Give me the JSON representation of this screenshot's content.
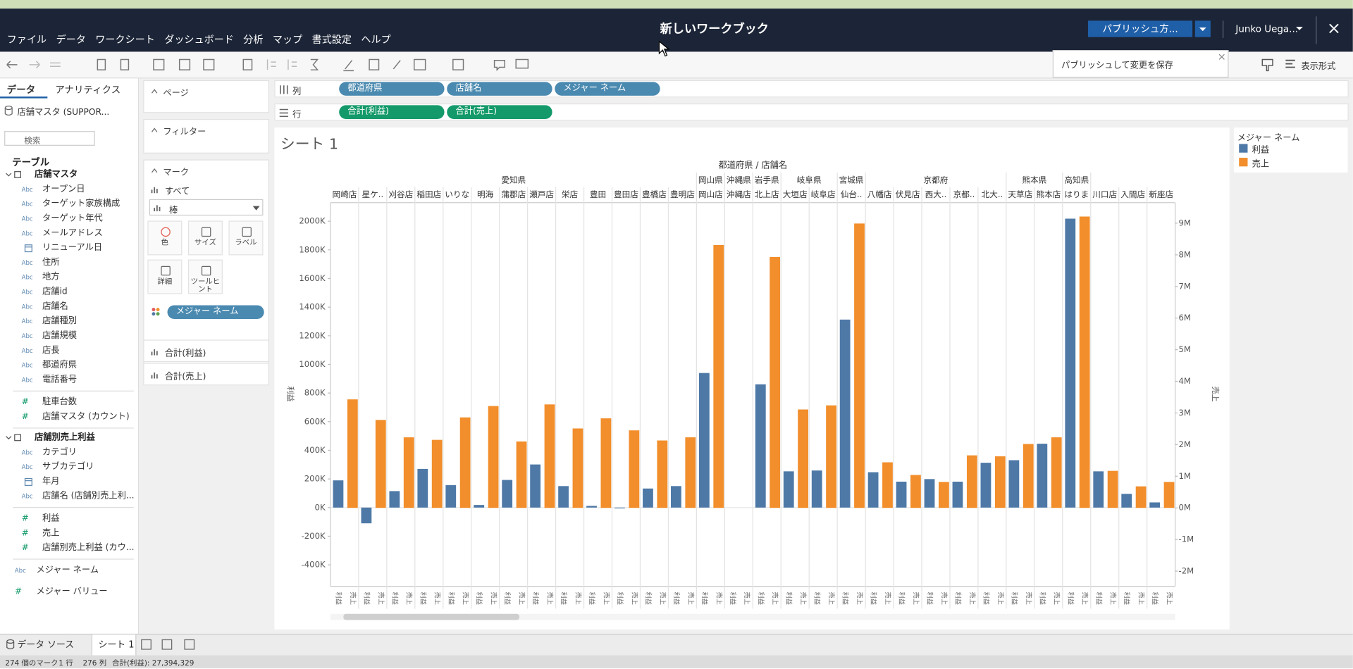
{
  "window": {
    "title": "新しいワークブック",
    "publish": "パブリッシュ方...",
    "user": "Junko Uega...",
    "tooltip": "パブリッシュして変更を保存",
    "show_me": "表示形式"
  },
  "menu": [
    "ファイル",
    "データ",
    "ワークシート",
    "ダッシュボード",
    "分析",
    "マップ",
    "書式設定",
    "ヘルプ"
  ],
  "data_pane": {
    "tabs": [
      "データ",
      "アナリティクス"
    ],
    "source": "店舗マスタ (SUPPOR...",
    "search": "検索",
    "tables_heading": "テーブル",
    "icons": {
      "string": "Abc",
      "number": "#"
    },
    "tables": [
      {
        "name": "店舗マスタ",
        "dimensions": [
          {
            "name": "オープン日",
            "kind": "string"
          },
          {
            "name": "ターゲット家族構成",
            "kind": "string"
          },
          {
            "name": "ターゲット年代",
            "kind": "string"
          },
          {
            "name": "メールアドレス",
            "kind": "string"
          },
          {
            "name": "リニューアル日",
            "kind": "date"
          },
          {
            "name": "住所",
            "kind": "string"
          },
          {
            "name": "地方",
            "kind": "string"
          },
          {
            "name": "店舗id",
            "kind": "string"
          },
          {
            "name": "店舗名",
            "kind": "string"
          },
          {
            "name": "店舗種別",
            "kind": "string"
          },
          {
            "name": "店舗規模",
            "kind": "string"
          },
          {
            "name": "店長",
            "kind": "string"
          },
          {
            "name": "都道府県",
            "kind": "string"
          },
          {
            "name": "電話番号",
            "kind": "string"
          }
        ],
        "measures": [
          {
            "name": "駐車台数",
            "kind": "number"
          },
          {
            "name": "店舗マスタ (カウント)",
            "kind": "number"
          }
        ]
      },
      {
        "name": "店舗別売上利益",
        "dimensions": [
          {
            "name": "カテゴリ",
            "kind": "string"
          },
          {
            "name": "サブカテゴリ",
            "kind": "string"
          },
          {
            "name": "年月",
            "kind": "date"
          },
          {
            "name": "店舗名 (店舗別売上利...",
            "kind": "string"
          }
        ],
        "measures": [
          {
            "name": "利益",
            "kind": "number"
          },
          {
            "name": "売上",
            "kind": "number"
          },
          {
            "name": "店舗別売上利益 (カウ...",
            "kind": "number"
          }
        ]
      }
    ],
    "extra": [
      {
        "name": "メジャー ネーム",
        "kind": "string"
      },
      {
        "name": "メジャー バリュー",
        "kind": "number"
      }
    ]
  },
  "cards": {
    "pages": "ページ",
    "filters": "フィルター",
    "marks": "マーク",
    "marks_all": "すべて",
    "mark_type": "棒",
    "buttons": [
      "色",
      "サイズ",
      "ラベル",
      "詳細",
      "ツールヒント"
    ],
    "color_pill": "メジャー ネーム",
    "measures": [
      "合計(利益)",
      "合計(売上)"
    ]
  },
  "shelves": {
    "columns_label": "列",
    "columns": [
      "都道府県",
      "店舗名",
      "メジャー ネーム"
    ],
    "rows_label": "行",
    "rows": [
      "合計(利益)",
      "合計(売上)"
    ]
  },
  "chart_data": {
    "type": "bar",
    "title": "シート 1",
    "x_label": "都道府県 / 店舗名",
    "y_label": "利益",
    "y2_label": "売上",
    "legend_title": "メジャー ネーム",
    "prefectures": [
      "愛知県",
      "愛知県",
      "愛知県",
      "愛知県",
      "愛知県",
      "愛知県",
      "愛知県",
      "愛知県",
      "愛知県",
      "愛知県",
      "愛知県",
      "愛知県",
      "愛知県",
      "岡山県",
      "沖縄県",
      "岩手県",
      "岐阜県",
      "岐阜県",
      "宮城県",
      "京都府",
      "京都府",
      "京都府",
      "京都府",
      "京都府",
      "熊本県",
      "熊本県",
      "高知県",
      null,
      null,
      null
    ],
    "categories": [
      "岡崎店",
      "星ケ..",
      "刈谷店",
      "稲田店",
      "いりな",
      "明海",
      "蒲郡店",
      "瀬戸店",
      "栄店",
      "豊田",
      "豊田店",
      "豊橋店",
      "豊明店",
      "岡山店",
      "沖縄店",
      "北上店",
      "大垣店",
      "岐阜店",
      "仙台..",
      "八幡店",
      "伏見店",
      "西大..",
      "京都..",
      "北大..",
      "天草店",
      "熊本店",
      "はりま",
      "川口店",
      "入間店",
      "新座店"
    ],
    "series": [
      {
        "name": "利益",
        "color": "#4e79a7",
        "values": [
          190000,
          -110000,
          115000,
          270000,
          157000,
          18000,
          193000,
          301000,
          150000,
          12000,
          -5000,
          133000,
          150000,
          940000,
          null,
          861000,
          253000,
          259000,
          1313000,
          247000,
          181000,
          199000,
          181000,
          313000,
          331000,
          446000,
          2018000,
          253000,
          96000,
          36000
        ]
      },
      {
        "name": "売上",
        "color": "#f28e2b",
        "axis": "y2",
        "values": [
          3430000,
          2780000,
          2230000,
          2150000,
          2860000,
          3220000,
          2100000,
          3270000,
          2510000,
          2830000,
          2450000,
          2130000,
          2230000,
          8310000,
          null,
          7930000,
          3110000,
          3240000,
          8990000,
          1440000,
          1040000,
          820000,
          1660000,
          1630000,
          2020000,
          2230000,
          9210000,
          1170000,
          680000,
          820000
        ]
      }
    ],
    "ylim": [
      -550000,
      2130000
    ],
    "yticks": [
      {
        "value": -400000,
        "label": "-400K"
      },
      {
        "value": -200000,
        "label": "-200K"
      },
      {
        "value": 0,
        "label": "0K"
      },
      {
        "value": 200000,
        "label": "200K"
      },
      {
        "value": 400000,
        "label": "400K"
      },
      {
        "value": 600000,
        "label": "600K"
      },
      {
        "value": 800000,
        "label": "800K"
      },
      {
        "value": 1000000,
        "label": "1000K"
      },
      {
        "value": 1200000,
        "label": "1200K"
      },
      {
        "value": 1400000,
        "label": "1400K"
      },
      {
        "value": 1600000,
        "label": "1600K"
      },
      {
        "value": 1800000,
        "label": "1800K"
      },
      {
        "value": 2000000,
        "label": "2000K"
      }
    ],
    "y2lim": [
      -2480000,
      9650000
    ],
    "y2ticks": [
      {
        "value": -2000000,
        "label": "-2M"
      },
      {
        "value": -1000000,
        "label": "-1M"
      },
      {
        "value": 0,
        "label": "0M"
      },
      {
        "value": 1000000,
        "label": "1M"
      },
      {
        "value": 2000000,
        "label": "2M"
      },
      {
        "value": 3000000,
        "label": "3M"
      },
      {
        "value": 4000000,
        "label": "4M"
      },
      {
        "value": 5000000,
        "label": "5M"
      },
      {
        "value": 6000000,
        "label": "6M"
      },
      {
        "value": 7000000,
        "label": "7M"
      },
      {
        "value": 8000000,
        "label": "8M"
      },
      {
        "value": 9000000,
        "label": "9M"
      }
    ],
    "grid": false
  },
  "tabs": {
    "data_source": "データ ソース",
    "sheet": "シート 1"
  },
  "status": [
    "274 個のマーク",
    "1 行",
    "276 列",
    "合計(利益): 27,394,329"
  ]
}
